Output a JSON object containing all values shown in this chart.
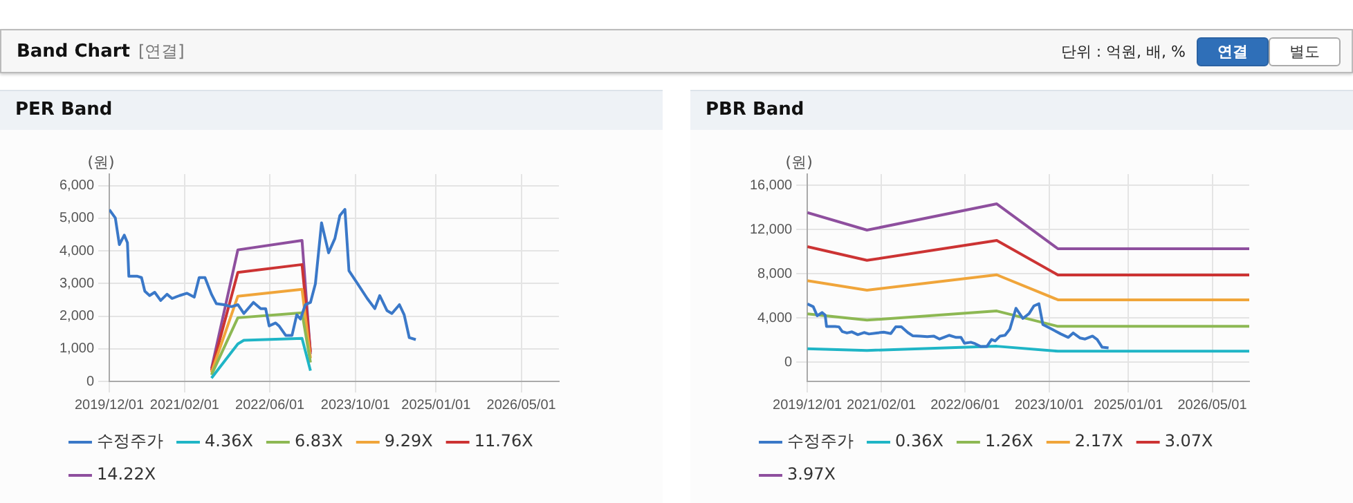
{
  "chart_data": [
    {
      "type": "other",
      "title": "Band Chart",
      "annotations": [
        "[연결]",
        "단위 : 억원, 배, %",
        "연결",
        "별도"
      ]
    },
    {
      "type": "line",
      "title": "PER Band",
      "ylabel": "(원)",
      "legend": "bottom",
      "grid": true,
      "marker": "none",
      "line_style": "solid",
      "xlim": [
        "2019-12-01",
        "2026-12-01"
      ],
      "xticks": [
        {
          "value": "2019-12-01",
          "label": "2019/12/01"
        },
        {
          "value": "2021-02-01",
          "label": "2021/02/01"
        },
        {
          "value": "2022-06-01",
          "label": "2022/06/01"
        },
        {
          "value": "2023-10-01",
          "label": "2023/10/01"
        },
        {
          "value": "2025-01-01",
          "label": "2025/01/01"
        },
        {
          "value": "2026-05-01",
          "label": "2026/05/01"
        }
      ],
      "ylim": [
        0,
        6350
      ],
      "yticks": [
        0,
        {
          "value": 1000,
          "label": "1,000"
        },
        {
          "value": 2000,
          "label": "2,000"
        },
        {
          "value": 3000,
          "label": "3,000"
        },
        {
          "value": 4000,
          "label": "4,000"
        },
        {
          "value": 5000,
          "label": "5,000"
        },
        {
          "value": 6000,
          "label": "6,000"
        }
      ],
      "series": [
        {
          "name": "수정주가",
          "color": "#3a78c8",
          "x": [
            "2019-12-01",
            "2020-01-04",
            "2020-01-27",
            "2020-02-24",
            "2020-03-13",
            "2020-03-21",
            "2020-05-09",
            "2020-06-01",
            "2020-06-20",
            "2020-07-17",
            "2020-08-15",
            "2020-09-18",
            "2020-10-24",
            "2020-11-22",
            "2021-01-04",
            "2021-02-15",
            "2021-03-28",
            "2021-04-25",
            "2021-05-28",
            "2021-07-04",
            "2021-08-01",
            "2021-09-13",
            "2021-10-25",
            "2021-12-01",
            "2022-01-04",
            "2022-02-28",
            "2022-04-10",
            "2022-05-08",
            "2022-05-28",
            "2022-07-04",
            "2022-07-23",
            "2022-08-30",
            "2022-10-05",
            "2022-11-01",
            "2022-11-22",
            "2022-12-20",
            "2023-01-18",
            "2023-02-15",
            "2023-03-22",
            "2023-05-01",
            "2023-06-06",
            "2023-07-04",
            "2023-08-02",
            "2023-08-25",
            "2023-10-11",
            "2023-12-07",
            "2024-01-19",
            "2024-02-16",
            "2024-03-28",
            "2024-04-25",
            "2024-06-07",
            "2024-07-04",
            "2024-08-02",
            "2024-09-08"
          ],
          "values": [
            5260,
            5010,
            4190,
            4480,
            4250,
            3220,
            3220,
            3180,
            2760,
            2630,
            2730,
            2480,
            2670,
            2540,
            2630,
            2700,
            2580,
            3180,
            3180,
            2670,
            2380,
            2350,
            2290,
            2350,
            2080,
            2420,
            2230,
            2230,
            1700,
            1790,
            1700,
            1410,
            1410,
            2040,
            1910,
            2350,
            2420,
            2990,
            4860,
            3940,
            4380,
            5080,
            5270,
            3390,
            3010,
            2540,
            2230,
            2630,
            2170,
            2080,
            2350,
            2040,
            1340,
            1280
          ]
        },
        {
          "name": "4.36X",
          "color": "#1fb5c6",
          "x": [
            "2021-07-04",
            "2021-12-01",
            "2022-01-04",
            "2022-12-01",
            "2023-01-18"
          ],
          "values": [
            100,
            1150,
            1260,
            1320,
            330
          ]
        },
        {
          "name": "6.83X",
          "color": "#8db853",
          "x": [
            "2021-07-04",
            "2021-12-01",
            "2022-12-01",
            "2023-01-18"
          ],
          "values": [
            200,
            1950,
            2100,
            580
          ]
        },
        {
          "name": "9.29X",
          "color": "#f0a53a",
          "x": [
            "2021-07-04",
            "2021-12-01",
            "2022-12-01",
            "2023-01-18"
          ],
          "values": [
            270,
            2610,
            2820,
            710
          ]
        },
        {
          "name": "11.76X",
          "color": "#cc3333",
          "x": [
            "2021-07-04",
            "2021-12-01",
            "2022-12-01",
            "2023-01-18"
          ],
          "values": [
            330,
            3340,
            3580,
            900
          ]
        },
        {
          "name": "14.22X",
          "color": "#8e4f9e",
          "x": [
            "2021-07-04",
            "2021-12-01",
            "2022-12-01",
            "2023-01-18"
          ],
          "values": [
            390,
            4030,
            4320,
            840
          ]
        }
      ]
    },
    {
      "type": "line",
      "title": "PBR Band",
      "ylabel": "(원)",
      "legend": "bottom",
      "grid": true,
      "marker": "none",
      "line_style": "solid",
      "xlim": [
        "2019-12-01",
        "2026-12-01"
      ],
      "xticks": [
        {
          "value": "2019-12-01",
          "label": "2019/12/01"
        },
        {
          "value": "2021-02-01",
          "label": "2021/02/01"
        },
        {
          "value": "2022-06-01",
          "label": "2022/06/01"
        },
        {
          "value": "2023-10-01",
          "label": "2023/10/01"
        },
        {
          "value": "2025-01-01",
          "label": "2025/01/01"
        },
        {
          "value": "2026-05-01",
          "label": "2026/05/01"
        }
      ],
      "ylim": [
        -1750,
        17000
      ],
      "yticks": [
        0,
        {
          "value": 4000,
          "label": "4,000"
        },
        {
          "value": 8000,
          "label": "8,000"
        },
        {
          "value": 12000,
          "label": "12,000"
        },
        {
          "value": 16000,
          "label": "16,000"
        }
      ],
      "series": [
        {
          "name": "수정주가",
          "color": "#3a78c8",
          "x": [
            "2019-12-01",
            "2020-01-04",
            "2020-01-27",
            "2020-02-24",
            "2020-03-13",
            "2020-03-21",
            "2020-05-09",
            "2020-06-01",
            "2020-06-20",
            "2020-07-17",
            "2020-08-15",
            "2020-09-18",
            "2020-10-24",
            "2020-11-22",
            "2021-01-04",
            "2021-02-15",
            "2021-03-28",
            "2021-04-25",
            "2021-05-28",
            "2021-07-04",
            "2021-08-01",
            "2021-09-13",
            "2021-10-25",
            "2021-12-01",
            "2022-01-04",
            "2022-02-28",
            "2022-04-10",
            "2022-05-08",
            "2022-05-28",
            "2022-07-04",
            "2022-07-23",
            "2022-08-30",
            "2022-10-05",
            "2022-11-01",
            "2022-11-22",
            "2022-12-20",
            "2023-01-18",
            "2023-02-15",
            "2023-03-22",
            "2023-05-01",
            "2023-06-06",
            "2023-07-04",
            "2023-08-02",
            "2023-08-25",
            "2023-10-11",
            "2023-12-07",
            "2024-01-19",
            "2024-02-16",
            "2024-03-28",
            "2024-04-25",
            "2024-06-07",
            "2024-07-04",
            "2024-08-02",
            "2024-09-08"
          ],
          "values": [
            5260,
            5010,
            4190,
            4480,
            4250,
            3220,
            3220,
            3180,
            2760,
            2630,
            2730,
            2480,
            2670,
            2540,
            2630,
            2700,
            2580,
            3180,
            3180,
            2670,
            2380,
            2350,
            2290,
            2350,
            2080,
            2420,
            2230,
            2230,
            1700,
            1790,
            1700,
            1410,
            1410,
            2040,
            1910,
            2350,
            2420,
            2990,
            4860,
            3940,
            4380,
            5080,
            5270,
            3390,
            3010,
            2540,
            2230,
            2630,
            2170,
            2080,
            2350,
            2040,
            1340,
            1280
          ]
        },
        {
          "name": "0.36X",
          "color": "#1fb5c6",
          "x": [
            "2019-12-01",
            "2020-11-10",
            "2022-12-01",
            "2023-11-20",
            "2026-12-01"
          ],
          "values": [
            1200,
            1050,
            1430,
            980,
            980
          ]
        },
        {
          "name": "1.26X",
          "color": "#8db853",
          "x": [
            "2019-12-01",
            "2020-11-10",
            "2022-12-01",
            "2023-11-20",
            "2026-12-01"
          ],
          "values": [
            4360,
            3790,
            4620,
            3230,
            3230
          ]
        },
        {
          "name": "2.17X",
          "color": "#f0a53a",
          "x": [
            "2019-12-01",
            "2020-11-10",
            "2022-12-01",
            "2023-11-20",
            "2026-12-01"
          ],
          "values": [
            7360,
            6500,
            7890,
            5630,
            5630
          ]
        },
        {
          "name": "3.07X",
          "color": "#cc3333",
          "x": [
            "2019-12-01",
            "2020-11-10",
            "2022-12-01",
            "2023-11-20",
            "2026-12-01"
          ],
          "values": [
            10440,
            9200,
            11000,
            7880,
            7880
          ]
        },
        {
          "name": "3.97X",
          "color": "#8e4f9e",
          "x": [
            "2019-12-01",
            "2020-11-10",
            "2022-12-01",
            "2023-11-20",
            "2026-12-01"
          ],
          "values": [
            13520,
            11940,
            14310,
            10250,
            10250
          ]
        }
      ]
    }
  ]
}
